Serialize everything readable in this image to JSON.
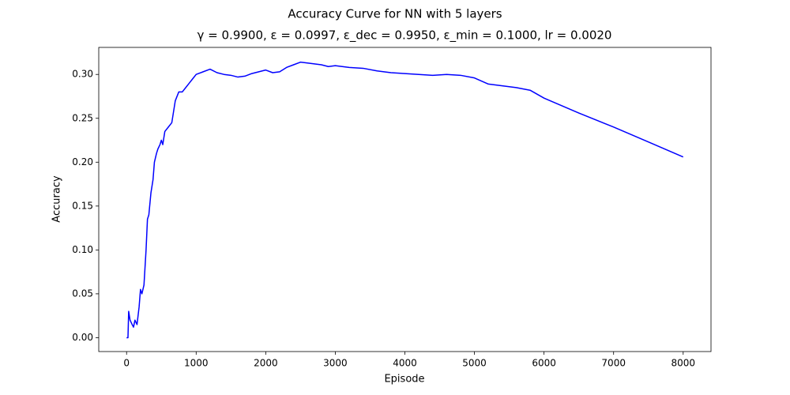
{
  "chart_data": {
    "type": "line",
    "title": "Accuracy Curve for NN with 5 layers",
    "subtitle": "γ = 0.9900, ε = 0.0997, ε_dec = 0.9950, ε_min = 0.1000, lr = 0.0020",
    "x_label": "Episode",
    "y_label": "Accuracy",
    "x": [
      0,
      20,
      30,
      50,
      80,
      100,
      120,
      150,
      180,
      200,
      220,
      250,
      280,
      300,
      320,
      350,
      380,
      400,
      430,
      450,
      480,
      500,
      520,
      550,
      600,
      650,
      700,
      750,
      800,
      850,
      900,
      950,
      1000,
      1100,
      1200,
      1300,
      1400,
      1500,
      1600,
      1700,
      1800,
      1900,
      2000,
      2100,
      2200,
      2300,
      2400,
      2500,
      2600,
      2700,
      2800,
      2900,
      3000,
      3200,
      3400,
      3600,
      3800,
      4000,
      4200,
      4400,
      4600,
      4800,
      5000,
      5200,
      5400,
      5600,
      5800,
      6000,
      6500,
      7000,
      7500,
      8000
    ],
    "series": [
      {
        "color": "#0000ff",
        "values": [
          0,
          0,
          0.03,
          0.02,
          0.015,
          0.012,
          0.02,
          0.015,
          0.035,
          0.055,
          0.05,
          0.06,
          0.1,
          0.135,
          0.14,
          0.165,
          0.18,
          0.2,
          0.21,
          0.215,
          0.22,
          0.225,
          0.22,
          0.235,
          0.24,
          0.245,
          0.27,
          0.28,
          0.28,
          0.285,
          0.29,
          0.295,
          0.3,
          0.303,
          0.306,
          0.302,
          0.3,
          0.299,
          0.297,
          0.298,
          0.301,
          0.303,
          0.305,
          0.302,
          0.303,
          0.308,
          0.311,
          0.314,
          0.313,
          0.312,
          0.311,
          0.309,
          0.31,
          0.308,
          0.307,
          0.304,
          0.302,
          0.301,
          0.3,
          0.299,
          0.3,
          0.299,
          0.296,
          0.289,
          0.287,
          0.285,
          0.282,
          0.273,
          0.256,
          0.24,
          0.223,
          0.206
        ]
      }
    ],
    "xlim": [
      -400,
      8400
    ],
    "xticks": [
      0,
      1000,
      2000,
      3000,
      4000,
      5000,
      6000,
      7000,
      8000
    ],
    "ylim": [
      -0.0158,
      0.3308
    ],
    "yticks": [
      {
        "value": 0,
        "label": "0.00"
      },
      0.05,
      {
        "value": 0.1,
        "label": "0.10"
      },
      0.15,
      {
        "value": 0.2,
        "label": "0.20"
      },
      0.25,
      {
        "value": 0.3,
        "label": "0.30"
      }
    ]
  }
}
